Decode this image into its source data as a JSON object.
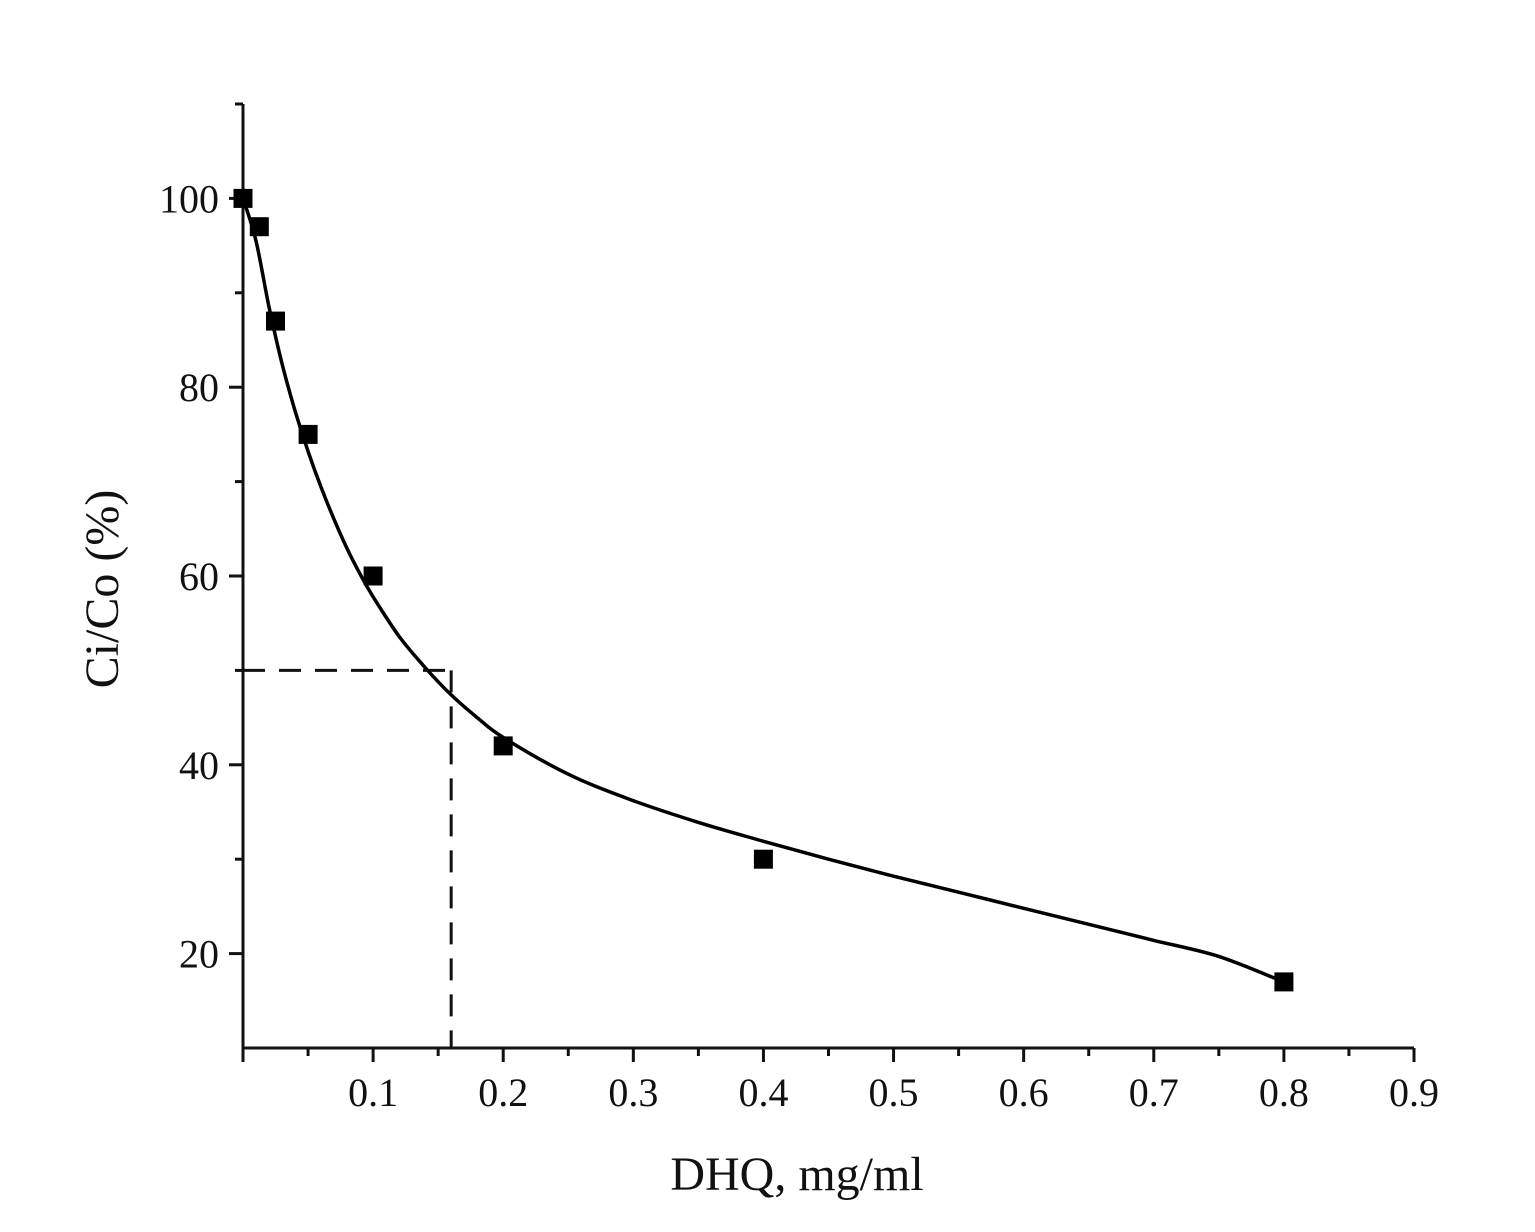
{
  "chart_data": {
    "type": "scatter",
    "title": "",
    "xlabel": "DHQ, mg/ml",
    "ylabel": "Ci/Co (%)",
    "xlim": [
      0,
      0.9
    ],
    "ylim": [
      10,
      110
    ],
    "x_ticks": [
      0.1,
      0.2,
      0.3,
      0.4,
      0.5,
      0.6,
      0.7,
      0.8,
      0.9
    ],
    "x_tick_labels": [
      "0.1",
      "0.2",
      "0.3",
      "0.4",
      "0.5",
      "0.6",
      "0.7",
      "0.8",
      "0.9"
    ],
    "x_minor_ticks": [
      0.05,
      0.15,
      0.25,
      0.35,
      0.45,
      0.55,
      0.65,
      0.75,
      0.85
    ],
    "y_ticks": [
      20,
      40,
      60,
      80,
      100
    ],
    "y_tick_labels": [
      "20",
      "40",
      "60",
      "80",
      "100"
    ],
    "y_minor_ticks": [
      30,
      50,
      70,
      90,
      110
    ],
    "grid": false,
    "legend": "none",
    "series": [
      {
        "marker": "square",
        "color": "#000000",
        "x": [
          0,
          0.0125,
          0.025,
          0.05,
          0.1,
          0.2,
          0.4,
          0.8
        ],
        "y": [
          100,
          97,
          87,
          75,
          60,
          42,
          30,
          17
        ]
      }
    ],
    "fit_curve": {
      "style": "solid",
      "color": "#000000",
      "x": [
        0,
        0.01,
        0.02,
        0.03,
        0.04,
        0.05,
        0.06,
        0.07,
        0.08,
        0.09,
        0.1,
        0.12,
        0.14,
        0.16,
        0.18,
        0.2,
        0.25,
        0.3,
        0.35,
        0.4,
        0.45,
        0.5,
        0.55,
        0.6,
        0.65,
        0.7,
        0.75,
        0.8
      ],
      "y": [
        100,
        95.5,
        88.5,
        82.5,
        77.5,
        73.2,
        69.4,
        66.0,
        62.9,
        60.2,
        57.8,
        53.6,
        50.3,
        47.4,
        45.0,
        42.9,
        39.0,
        36.2,
        33.9,
        31.9,
        30.0,
        28.2,
        26.5,
        24.8,
        23.1,
        21.4,
        19.7,
        17.0
      ]
    },
    "reference_lines": {
      "style": "dashed",
      "x": 0.16,
      "y": 50
    }
  }
}
